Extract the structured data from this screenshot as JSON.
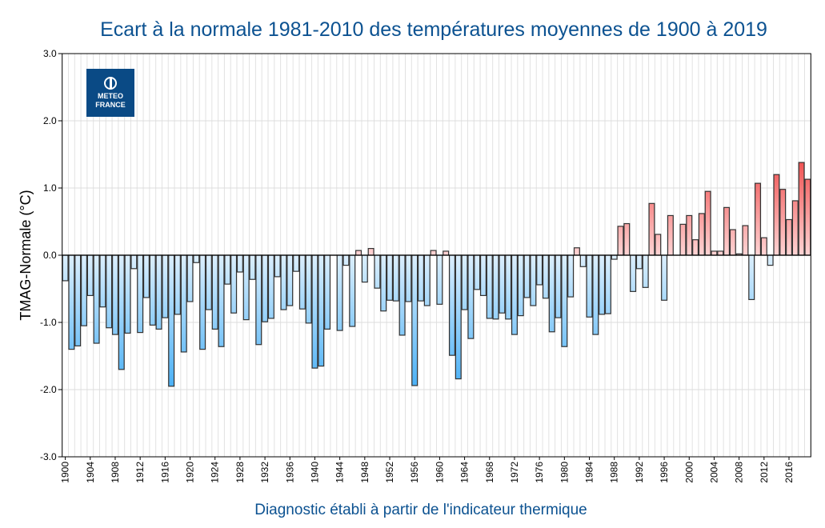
{
  "chart_data": {
    "type": "bar",
    "title": "Ecart à la normale 1981-2010 des températures moyennes de 1900 à 2019",
    "xlabel": "Diagnostic établi à partir de l'indicateur thermique",
    "ylabel": "TMAG-Normale (°C)",
    "ylim": [
      -3.0,
      3.0
    ],
    "yticks": [
      "3.0",
      "2.0",
      "1.0",
      "0.0",
      "-1.0",
      "-2.0",
      "-3.0"
    ],
    "grid": true,
    "x_start": 1900,
    "x_end": 2019,
    "xtick_step": 4,
    "colors": {
      "negative_light": "#dceffd",
      "negative_dark": "#45aef5",
      "positive_light": "#ffd4d4",
      "positive_dark": "#f05454",
      "title": "#0c5291"
    },
    "values": [
      -0.38,
      -1.4,
      -1.35,
      -1.05,
      -0.6,
      -1.31,
      -0.77,
      -1.08,
      -1.18,
      -1.7,
      -1.16,
      -0.2,
      -1.15,
      -0.63,
      -1.04,
      -1.1,
      -0.93,
      -1.95,
      -0.88,
      -1.44,
      -0.69,
      -0.11,
      -1.4,
      -0.81,
      -1.1,
      -1.36,
      -0.43,
      -0.86,
      -0.25,
      -0.96,
      -0.36,
      -1.33,
      -0.99,
      -0.94,
      -0.32,
      -0.81,
      -0.75,
      -0.24,
      -0.8,
      -1.01,
      -1.68,
      -1.65,
      -1.1,
      0.0,
      -1.12,
      -0.15,
      -1.06,
      0.07,
      -0.4,
      0.1,
      -0.49,
      -0.83,
      -0.67,
      -0.68,
      -1.19,
      -0.69,
      -1.94,
      -0.68,
      -0.75,
      0.07,
      -0.73,
      0.06,
      -1.49,
      -1.84,
      -0.81,
      -1.24,
      -0.51,
      -0.6,
      -0.94,
      -0.95,
      -0.86,
      -0.95,
      -1.18,
      -0.9,
      -0.63,
      -0.75,
      -0.44,
      -0.64,
      -1.14,
      -0.93,
      -1.36,
      -0.62,
      0.11,
      -0.17,
      -0.92,
      -1.18,
      -0.88,
      -0.87,
      -0.06,
      0.43,
      0.47,
      -0.54,
      -0.2,
      -0.48,
      0.77,
      0.31,
      -0.67,
      0.59,
      0.0,
      0.46,
      0.59,
      0.23,
      0.62,
      0.95,
      0.06,
      0.06,
      0.71,
      0.38,
      0.02,
      0.44,
      -0.66,
      1.07,
      0.26,
      -0.15,
      1.2,
      0.98,
      0.53,
      0.81,
      1.38,
      1.13
    ]
  },
  "logo": {
    "line1": "METEO",
    "line2": "FRANCE",
    "color": "#0a4a85"
  }
}
